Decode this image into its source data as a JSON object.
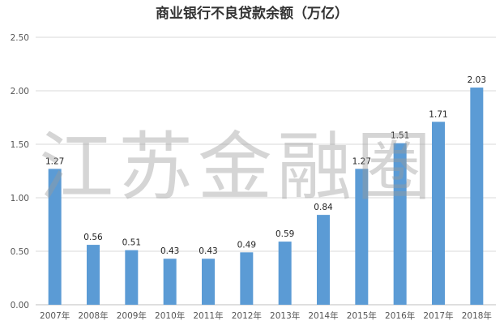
{
  "chart_data": {
    "type": "bar",
    "title": "商业银行不良贷款余额（万亿）",
    "categories": [
      "2007年",
      "2008年",
      "2009年",
      "2010年",
      "2011年",
      "2012年",
      "2013年",
      "2014年",
      "2015年",
      "2016年",
      "2017年",
      "2018年"
    ],
    "values": [
      1.27,
      0.56,
      0.51,
      0.43,
      0.43,
      0.49,
      0.59,
      0.84,
      1.27,
      1.51,
      1.71,
      2.03
    ],
    "data_labels": [
      "1.27",
      "0.56",
      "0.51",
      "0.43",
      "0.43",
      "0.49",
      "0.59",
      "0.84",
      "1.27",
      "1.51",
      "1.71",
      "2.03"
    ],
    "yticks": [
      "0.00",
      "0.50",
      "1.00",
      "1.50",
      "2.00",
      "2.50"
    ],
    "ylim": [
      0,
      2.5
    ],
    "grid": true,
    "legend": "none",
    "bar_color": "#5b9bd5",
    "grid_color": "#d9d9d9"
  },
  "watermark": "江苏金融圈"
}
